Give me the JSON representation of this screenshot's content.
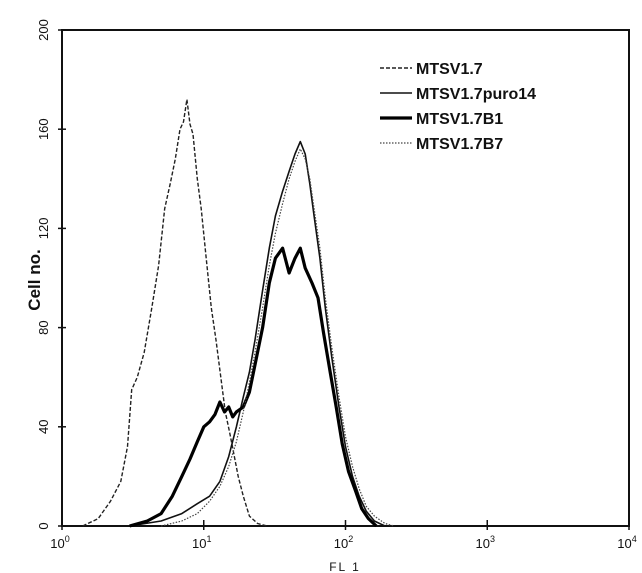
{
  "chart_data": {
    "type": "line",
    "title": "",
    "xlabel": "FL 1",
    "ylabel": "Cell no.",
    "x_scale": "log",
    "xlim": [
      1,
      10000
    ],
    "ylim": [
      0,
      200
    ],
    "x_ticks": [
      {
        "value": 1,
        "base": "10",
        "exp": "0"
      },
      {
        "value": 10,
        "base": "10",
        "exp": "1"
      },
      {
        "value": 100,
        "base": "10",
        "exp": "2"
      },
      {
        "value": 1000,
        "base": "10",
        "exp": "3"
      },
      {
        "value": 10000,
        "base": "10",
        "exp": "4"
      }
    ],
    "y_ticks": [
      0,
      40,
      80,
      120,
      160,
      200
    ],
    "legend_position": "top-right",
    "grid": false,
    "series": [
      {
        "name": "MTSV1.7",
        "style": "dashed",
        "points": [
          [
            1.4,
            0
          ],
          [
            1.8,
            3
          ],
          [
            2.2,
            10
          ],
          [
            2.6,
            18
          ],
          [
            2.9,
            32
          ],
          [
            3.1,
            55
          ],
          [
            3.4,
            60
          ],
          [
            3.8,
            70
          ],
          [
            4.3,
            88
          ],
          [
            4.8,
            105
          ],
          [
            5.3,
            128
          ],
          [
            5.8,
            138
          ],
          [
            6.3,
            148
          ],
          [
            6.8,
            160
          ],
          [
            7.2,
            163
          ],
          [
            7.6,
            172
          ],
          [
            8.0,
            162
          ],
          [
            8.4,
            158
          ],
          [
            9.0,
            140
          ],
          [
            9.6,
            128
          ],
          [
            10.4,
            108
          ],
          [
            11.3,
            88
          ],
          [
            12.2,
            75
          ],
          [
            13.2,
            60
          ],
          [
            14.2,
            46
          ],
          [
            15.2,
            38
          ],
          [
            16.2,
            30
          ],
          [
            17.5,
            20
          ],
          [
            19,
            12
          ],
          [
            21,
            4
          ],
          [
            24,
            1
          ],
          [
            28,
            0
          ]
        ]
      },
      {
        "name": "MTSV1.7puro14",
        "style": "thin",
        "points": [
          [
            3,
            0
          ],
          [
            5,
            2
          ],
          [
            7,
            5
          ],
          [
            9,
            9
          ],
          [
            11,
            12
          ],
          [
            13,
            18
          ],
          [
            15,
            28
          ],
          [
            17,
            40
          ],
          [
            19,
            52
          ],
          [
            21,
            62
          ],
          [
            23,
            75
          ],
          [
            26,
            95
          ],
          [
            29,
            112
          ],
          [
            32,
            125
          ],
          [
            36,
            135
          ],
          [
            40,
            143
          ],
          [
            44,
            150
          ],
          [
            48,
            155
          ],
          [
            52,
            150
          ],
          [
            56,
            138
          ],
          [
            60,
            125
          ],
          [
            66,
            108
          ],
          [
            72,
            88
          ],
          [
            80,
            68
          ],
          [
            90,
            48
          ],
          [
            100,
            32
          ],
          [
            112,
            20
          ],
          [
            125,
            12
          ],
          [
            140,
            6
          ],
          [
            160,
            2
          ],
          [
            190,
            0
          ]
        ]
      },
      {
        "name": "MTSV1.7B1",
        "style": "thick",
        "points": [
          [
            3,
            0
          ],
          [
            4,
            2
          ],
          [
            5,
            5
          ],
          [
            6,
            12
          ],
          [
            7,
            20
          ],
          [
            8,
            27
          ],
          [
            9,
            34
          ],
          [
            10,
            40
          ],
          [
            11,
            42
          ],
          [
            12,
            45
          ],
          [
            13,
            50
          ],
          [
            14,
            46
          ],
          [
            15,
            48
          ],
          [
            16,
            44
          ],
          [
            17,
            46
          ],
          [
            19,
            48
          ],
          [
            21,
            54
          ],
          [
            23,
            65
          ],
          [
            26,
            80
          ],
          [
            29,
            98
          ],
          [
            32,
            108
          ],
          [
            36,
            112
          ],
          [
            40,
            102
          ],
          [
            44,
            108
          ],
          [
            48,
            112
          ],
          [
            52,
            104
          ],
          [
            58,
            98
          ],
          [
            64,
            92
          ],
          [
            70,
            78
          ],
          [
            78,
            62
          ],
          [
            86,
            48
          ],
          [
            95,
            33
          ],
          [
            105,
            22
          ],
          [
            118,
            14
          ],
          [
            130,
            7
          ],
          [
            145,
            3
          ],
          [
            165,
            0
          ]
        ]
      },
      {
        "name": "MTSV1.7B7",
        "style": "dotted",
        "points": [
          [
            5,
            0
          ],
          [
            7,
            2
          ],
          [
            9,
            5
          ],
          [
            11,
            10
          ],
          [
            13,
            16
          ],
          [
            15,
            24
          ],
          [
            17,
            34
          ],
          [
            19,
            46
          ],
          [
            21,
            58
          ],
          [
            23,
            70
          ],
          [
            26,
            88
          ],
          [
            29,
            105
          ],
          [
            32,
            118
          ],
          [
            36,
            130
          ],
          [
            40,
            140
          ],
          [
            44,
            147
          ],
          [
            48,
            152
          ],
          [
            52,
            148
          ],
          [
            56,
            140
          ],
          [
            60,
            128
          ],
          [
            66,
            112
          ],
          [
            72,
            92
          ],
          [
            80,
            72
          ],
          [
            90,
            52
          ],
          [
            100,
            36
          ],
          [
            112,
            24
          ],
          [
            125,
            15
          ],
          [
            140,
            8
          ],
          [
            160,
            4
          ],
          [
            190,
            1
          ],
          [
            220,
            0
          ]
        ]
      }
    ]
  }
}
